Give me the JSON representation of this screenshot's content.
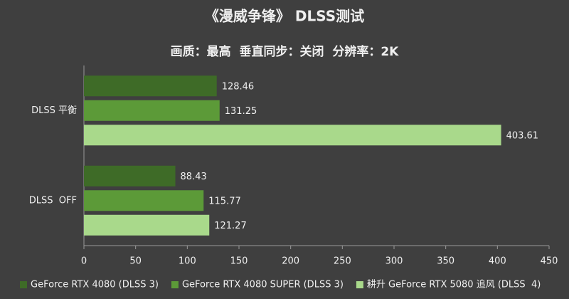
{
  "chart_data": {
    "type": "bar",
    "orientation": "horizontal",
    "title": "《漫威争锋》 DLSS测试",
    "subtitle": "画质：最高  垂直同步：关闭  分辨率：2K",
    "categories": [
      "DLSS 平衡",
      "DLSS  OFF"
    ],
    "series": [
      {
        "name": "GeForce RTX 4080 (DLSS 3)",
        "color": "#3e6b27",
        "values": [
          128.46,
          88.43
        ]
      },
      {
        "name": "GeForce RTX 4080 SUPER (DLSS 3)",
        "color": "#5c9a38",
        "values": [
          131.25,
          115.77
        ]
      },
      {
        "name": "耕升 GeForce RTX 5080 追风 (DLSS  4)",
        "color": "#a9d98b",
        "values": [
          403.61,
          121.27
        ]
      }
    ],
    "xlim": [
      0,
      450
    ],
    "xticks": [
      0,
      50,
      100,
      150,
      200,
      250,
      300,
      350,
      400,
      450
    ],
    "grid": false,
    "legend": "bottom"
  }
}
